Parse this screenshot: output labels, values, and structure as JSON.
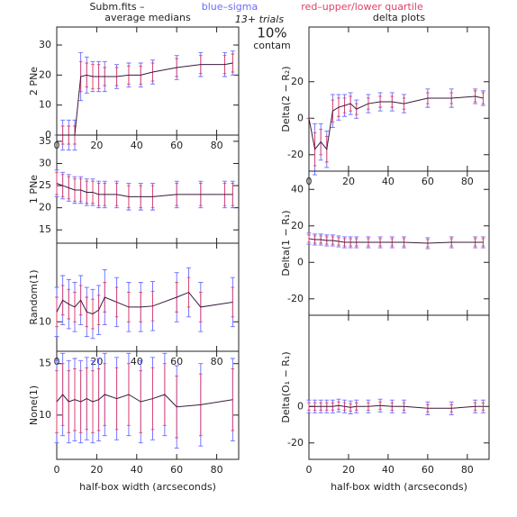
{
  "header": {
    "file": "Subm.fits –",
    "sigma_label": "blue–sigma",
    "quartile_label": "red–upper/lower quartile",
    "trials": "13+ trials",
    "contam_pct": "10%",
    "contam": "contam"
  },
  "chart_data": [
    {
      "type": "errorbar",
      "title": "average medians",
      "ylabel": "2 PNe",
      "xtick_labels": true,
      "x": [
        0,
        3,
        6,
        9,
        12,
        15,
        18,
        21,
        24,
        30,
        36,
        42,
        48,
        60,
        72,
        84,
        88
      ],
      "values": [
        0,
        0,
        0,
        0,
        19.5,
        20,
        19.5,
        19.5,
        19.5,
        19.5,
        20,
        20,
        21,
        22.5,
        23.5,
        23.5,
        24
      ],
      "sigma": [
        0,
        5,
        5,
        5,
        8,
        6,
        5,
        5,
        5,
        4,
        4,
        4,
        4,
        4,
        4,
        4,
        4
      ],
      "quartile": [
        0,
        3,
        3,
        3,
        5,
        4,
        4,
        4,
        3,
        3,
        3,
        3,
        3,
        3,
        3,
        3,
        3
      ],
      "line_color": "#3a1a3a",
      "sigma_color": "#6a6aff",
      "quartile_color": "#e0406a",
      "xlim": [
        0,
        91
      ],
      "ylim": [
        0,
        36
      ],
      "xticks": [
        0,
        20,
        40,
        60,
        80
      ],
      "yticks": [
        0,
        10,
        20,
        30
      ]
    },
    {
      "type": "errorbar",
      "ylabel": "1 PNe",
      "xtick_labels": false,
      "x": [
        0,
        3,
        6,
        9,
        12,
        15,
        18,
        21,
        24,
        30,
        36,
        42,
        48,
        60,
        72,
        84,
        88
      ],
      "values": [
        25.5,
        25,
        24.5,
        24,
        24,
        23.5,
        23.5,
        23,
        23,
        23,
        22.5,
        22.5,
        22.5,
        23,
        23,
        23,
        23
      ],
      "sigma": [
        3,
        3,
        3,
        3,
        3,
        3,
        3,
        3,
        3,
        3,
        3,
        3,
        3,
        3,
        3,
        3,
        3
      ],
      "quartile": [
        2.5,
        2.5,
        2.5,
        2.5,
        2.5,
        2.5,
        2.5,
        2.5,
        2.5,
        2.5,
        2.5,
        2.5,
        2.5,
        2.5,
        2.5,
        2.5,
        2.5
      ],
      "line_color": "#3a1a3a",
      "sigma_color": "#6a6aff",
      "quartile_color": "#e0406a",
      "xlim": [
        0,
        91
      ],
      "ylim": [
        12,
        36.4
      ],
      "xticks": [
        0,
        20,
        40,
        60,
        80
      ],
      "yticks": [
        15,
        20,
        25,
        30,
        35
      ]
    },
    {
      "type": "errorbar",
      "ylabel": "Random(1)",
      "xtick_labels": true,
      "x": [
        0,
        3,
        6,
        9,
        12,
        15,
        18,
        21,
        24,
        30,
        36,
        42,
        48,
        60,
        66,
        72,
        88
      ],
      "values": [
        11,
        12.2,
        11.8,
        11.5,
        12.2,
        11,
        10.8,
        11.2,
        12.5,
        12,
        11.5,
        11.5,
        11.6,
        12.5,
        13,
        11.5,
        12
      ],
      "sigma": [
        2.5,
        2.5,
        2.5,
        2.5,
        2.5,
        2.5,
        2.5,
        2.5,
        2.8,
        2.5,
        2.5,
        2.5,
        2.5,
        2.5,
        2.5,
        2.5,
        2.5
      ],
      "quartile": [
        1.5,
        1.5,
        1.5,
        1.5,
        1.5,
        1.5,
        1.5,
        1.5,
        1.5,
        1.5,
        1.5,
        1.5,
        1.5,
        1.5,
        1.5,
        1.5,
        1.5
      ],
      "line_color": "#3a1a3a",
      "sigma_color": "#6a6aff",
      "quartile_color": "#e0406a",
      "xlim": [
        0,
        91
      ],
      "ylim": [
        7,
        18
      ],
      "xticks": [
        0,
        20,
        40,
        60,
        80
      ],
      "yticks": [
        10
      ]
    },
    {
      "type": "errorbar",
      "ylabel": "None(1)",
      "xtick_labels": true,
      "xlabel": "half-box width (arcseconds)",
      "x": [
        0,
        3,
        6,
        9,
        12,
        15,
        18,
        21,
        24,
        30,
        36,
        42,
        48,
        54,
        60,
        72,
        88
      ],
      "values": [
        11.3,
        12,
        11.3,
        11.5,
        11.3,
        11.6,
        11.3,
        11.5,
        12,
        11.6,
        12,
        11.3,
        11.6,
        12,
        10.8,
        11,
        11.5
      ],
      "sigma": [
        4,
        4,
        4,
        4,
        4,
        4,
        4,
        4,
        4,
        4,
        4,
        4,
        4,
        4,
        4,
        4,
        4
      ],
      "quartile": [
        3,
        3,
        3,
        3,
        3,
        3,
        3,
        3,
        3,
        3,
        3,
        3,
        3,
        3,
        3,
        3,
        3
      ],
      "line_color": "#3a1a3a",
      "sigma_color": "#6a6aff",
      "quartile_color": "#e0406a",
      "xlim": [
        0,
        91
      ],
      "ylim": [
        5.7,
        16.2
      ],
      "xticks": [
        0,
        20,
        40,
        60,
        80
      ],
      "yticks": [
        10,
        15
      ]
    },
    {
      "type": "errorbar",
      "title": "delta plots",
      "ylabel": "Delta(2 − R₂)",
      "xtick_labels": true,
      "x": [
        0,
        3,
        6,
        9,
        12,
        15,
        18,
        21,
        24,
        30,
        36,
        42,
        48,
        60,
        72,
        84,
        88
      ],
      "values": [
        0,
        -17,
        -13,
        -17,
        4,
        6,
        7,
        8,
        5,
        8,
        9,
        9,
        8,
        11,
        11,
        12,
        11
      ],
      "sigma": [
        0,
        14,
        10,
        10,
        9,
        7,
        6,
        6,
        5,
        5,
        5,
        5,
        5,
        5,
        5,
        4,
        4
      ],
      "quartile": [
        0,
        9,
        7,
        7,
        6,
        5,
        4,
        4,
        3,
        3,
        3,
        3,
        3,
        3,
        3,
        3,
        3
      ],
      "line_color": "#3a1a3a",
      "sigma_color": "#6a6aff",
      "quartile_color": "#e0406a",
      "xlim": [
        0,
        91
      ],
      "ylim": [
        -29,
        50
      ],
      "xticks": [
        0,
        20,
        40,
        60,
        80
      ],
      "yticks": [
        -20,
        0,
        20
      ]
    },
    {
      "type": "errorbar",
      "ylabel": "Delta(1 − R₁)",
      "xtick_labels": false,
      "x": [
        0,
        3,
        6,
        9,
        12,
        15,
        18,
        21,
        24,
        30,
        36,
        42,
        48,
        60,
        72,
        84,
        88
      ],
      "values": [
        13,
        12.5,
        12.5,
        12,
        12,
        11.5,
        11,
        11,
        11,
        11,
        11,
        11,
        11,
        10.5,
        11,
        11,
        11
      ],
      "sigma": [
        3,
        3,
        3,
        3,
        3,
        3,
        3,
        3,
        3,
        3,
        3,
        3,
        3,
        3,
        3,
        3,
        3
      ],
      "quartile": [
        2,
        2,
        2,
        2,
        2,
        2,
        2,
        2,
        2,
        2,
        2,
        2,
        2,
        2,
        2,
        2,
        2
      ],
      "line_color": "#3a1a3a",
      "sigma_color": "#6a6aff",
      "quartile_color": "#e0406a",
      "xlim": [
        0,
        91
      ],
      "ylim": [
        -29,
        50
      ],
      "xticks": [
        0,
        20,
        40,
        60,
        80
      ],
      "yticks": [
        -20,
        0,
        20,
        40
      ]
    },
    {
      "type": "errorbar",
      "ylabel": "Delta(O₁ − R₁)",
      "xtick_labels": true,
      "xlabel": "half-box width (arcseconds)",
      "x": [
        0,
        3,
        6,
        9,
        12,
        15,
        18,
        21,
        24,
        30,
        36,
        42,
        48,
        60,
        72,
        84,
        88
      ],
      "values": [
        0,
        0,
        0,
        0,
        0,
        0.5,
        0,
        -0.5,
        0,
        0,
        0.5,
        0,
        0,
        -1,
        -1,
        0,
        0
      ],
      "sigma": [
        3.5,
        3.5,
        3.5,
        3.5,
        3.5,
        3.5,
        3.5,
        3.5,
        3.5,
        3.5,
        3.5,
        3.5,
        3.5,
        3.5,
        3.5,
        3.5,
        3.5
      ],
      "quartile": [
        2,
        2,
        2,
        2,
        2,
        2,
        2,
        2,
        2,
        2,
        2,
        2,
        2,
        2,
        2,
        2,
        2
      ],
      "line_color": "#3a1a3a",
      "sigma_color": "#6a6aff",
      "quartile_color": "#e0406a",
      "xlim": [
        0,
        91
      ],
      "ylim": [
        -29,
        50
      ],
      "xticks": [
        0,
        20,
        40,
        60,
        80
      ],
      "yticks": [
        -20,
        0
      ]
    }
  ]
}
